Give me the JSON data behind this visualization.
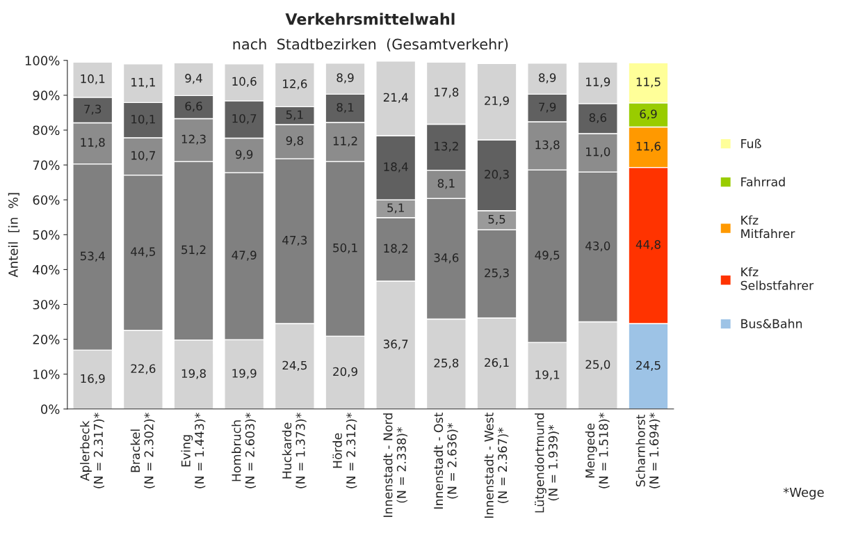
{
  "chart_data": {
    "type": "bar",
    "stacked": true,
    "title": "Verkehrsmittelwahl",
    "subtitle": "nach  Stadtbezirken  (Gesamtverkehr)",
    "ylabel": "Anteil  [in  %]",
    "categories": [
      "Aplerbeck\n(N = 2.317)*",
      "Brackel\n(N = 2.302)*",
      "Eving\n(N = 1.443)*",
      "Hombruch\n(N = 2.603)*",
      "Huckarde\n(N = 1.373)*",
      "Hörde\n(N = 2.312)*",
      "Innenstadt - Nord\n(N = 2.338)*",
      "Innenstadt - Ost\n(N = 2.636)*",
      "Innenstadt - West\n(N = 2.367)*",
      "Lütgendortmund\n(N = 1.939)*",
      "Mengede\n(N = 1.518)*",
      "Scharnhorst\n(N = 1.694)*"
    ],
    "ylim": [
      0,
      100
    ],
    "yticks": [
      {
        "value": 0,
        "label": "0%"
      },
      {
        "value": 10,
        "label": "10%"
      },
      {
        "value": 20,
        "label": "20%"
      },
      {
        "value": 30,
        "label": "30%"
      },
      {
        "value": 40,
        "label": "40%"
      },
      {
        "value": 50,
        "label": "50%"
      },
      {
        "value": 60,
        "label": "60%"
      },
      {
        "value": 70,
        "label": "70%"
      },
      {
        "value": 80,
        "label": "80%"
      },
      {
        "value": 90,
        "label": "90%"
      },
      {
        "value": 100,
        "label": "100%"
      }
    ],
    "legend": "right",
    "grid": false,
    "series": [
      {
        "name": "Bus&Bahn",
        "color": "#9dc3e6",
        "colors": [
          "#d3d3d3",
          "#d3d3d3",
          "#d3d3d3",
          "#d3d3d3",
          "#d3d3d3",
          "#d3d3d3",
          "#d3d3d3",
          "#d3d3d3",
          "#d3d3d3",
          "#d3d3d3",
          "#d3d3d3",
          "#9dc3e6"
        ],
        "values": [
          16.9,
          22.6,
          19.8,
          19.9,
          24.5,
          20.9,
          36.7,
          25.8,
          26.1,
          19.1,
          25.0,
          24.5
        ],
        "value_labels": [
          "16,9",
          "22,6",
          "19,8",
          "19,9",
          "24,5",
          "20,9",
          "36,7",
          "25,8",
          "26,1",
          "19,1",
          "25,0",
          "24,5"
        ]
      },
      {
        "name": "Kfz\nSelbstfahrer",
        "color": "#ff3300",
        "colors": [
          "#808080",
          "#808080",
          "#808080",
          "#808080",
          "#808080",
          "#808080",
          "#808080",
          "#808080",
          "#808080",
          "#808080",
          "#808080",
          "#ff3300"
        ],
        "values": [
          53.4,
          44.5,
          51.2,
          47.9,
          47.3,
          50.1,
          18.2,
          34.6,
          25.3,
          49.5,
          43.0,
          44.8
        ],
        "value_labels": [
          "53,4",
          "44,5",
          "51,2",
          "47,9",
          "47,3",
          "50,1",
          "18,2",
          "34,6",
          "25,3",
          "49,5",
          "43,0",
          "44,8"
        ]
      },
      {
        "name": "Kfz\nMitfahrer",
        "color": "#ff9900",
        "colors": [
          "#8c8c8c",
          "#8c8c8c",
          "#8c8c8c",
          "#8c8c8c",
          "#8c8c8c",
          "#8c8c8c",
          "#9a9a9a",
          "#8c8c8c",
          "#9a9a9a",
          "#8c8c8c",
          "#8c8c8c",
          "#ff9900"
        ],
        "values": [
          11.8,
          10.7,
          12.3,
          9.9,
          9.8,
          11.2,
          5.1,
          8.1,
          5.5,
          13.8,
          11.0,
          11.6
        ],
        "value_labels": [
          "11,8",
          "10,7",
          "12,3",
          "9,9",
          "9,8",
          "11,2",
          "5,1",
          "8,1",
          "5,5",
          "13,8",
          "11,0",
          "11,6"
        ]
      },
      {
        "name": "Fahrrad",
        "color": "#99cc00",
        "colors": [
          "#606060",
          "#606060",
          "#606060",
          "#606060",
          "#606060",
          "#606060",
          "#606060",
          "#606060",
          "#606060",
          "#606060",
          "#606060",
          "#99cc00"
        ],
        "values": [
          7.3,
          10.1,
          6.6,
          10.7,
          5.1,
          8.1,
          18.4,
          13.2,
          20.3,
          7.9,
          8.6,
          6.9
        ],
        "value_labels": [
          "7,3",
          "10,1",
          "6,6",
          "10,7",
          "5,1",
          "8,1",
          "18,4",
          "13,2",
          "20,3",
          "7,9",
          "8,6",
          "6,9"
        ]
      },
      {
        "name": "Fuß",
        "color": "#ffff99",
        "colors": [
          "#d3d3d3",
          "#d3d3d3",
          "#d3d3d3",
          "#d3d3d3",
          "#d3d3d3",
          "#d3d3d3",
          "#d3d3d3",
          "#d3d3d3",
          "#d3d3d3",
          "#d3d3d3",
          "#d3d3d3",
          "#ffff99"
        ],
        "values": [
          10.1,
          11.1,
          9.4,
          10.6,
          12.6,
          8.9,
          21.4,
          17.8,
          21.9,
          8.9,
          11.9,
          11.5
        ],
        "value_labels": [
          "10,1",
          "11,1",
          "9,4",
          "10,6",
          "12,6",
          "8,9",
          "21,4",
          "17,8",
          "21,9",
          "8,9",
          "11,9",
          "11,5"
        ]
      }
    ],
    "annotations": [
      "*Wege"
    ]
  }
}
